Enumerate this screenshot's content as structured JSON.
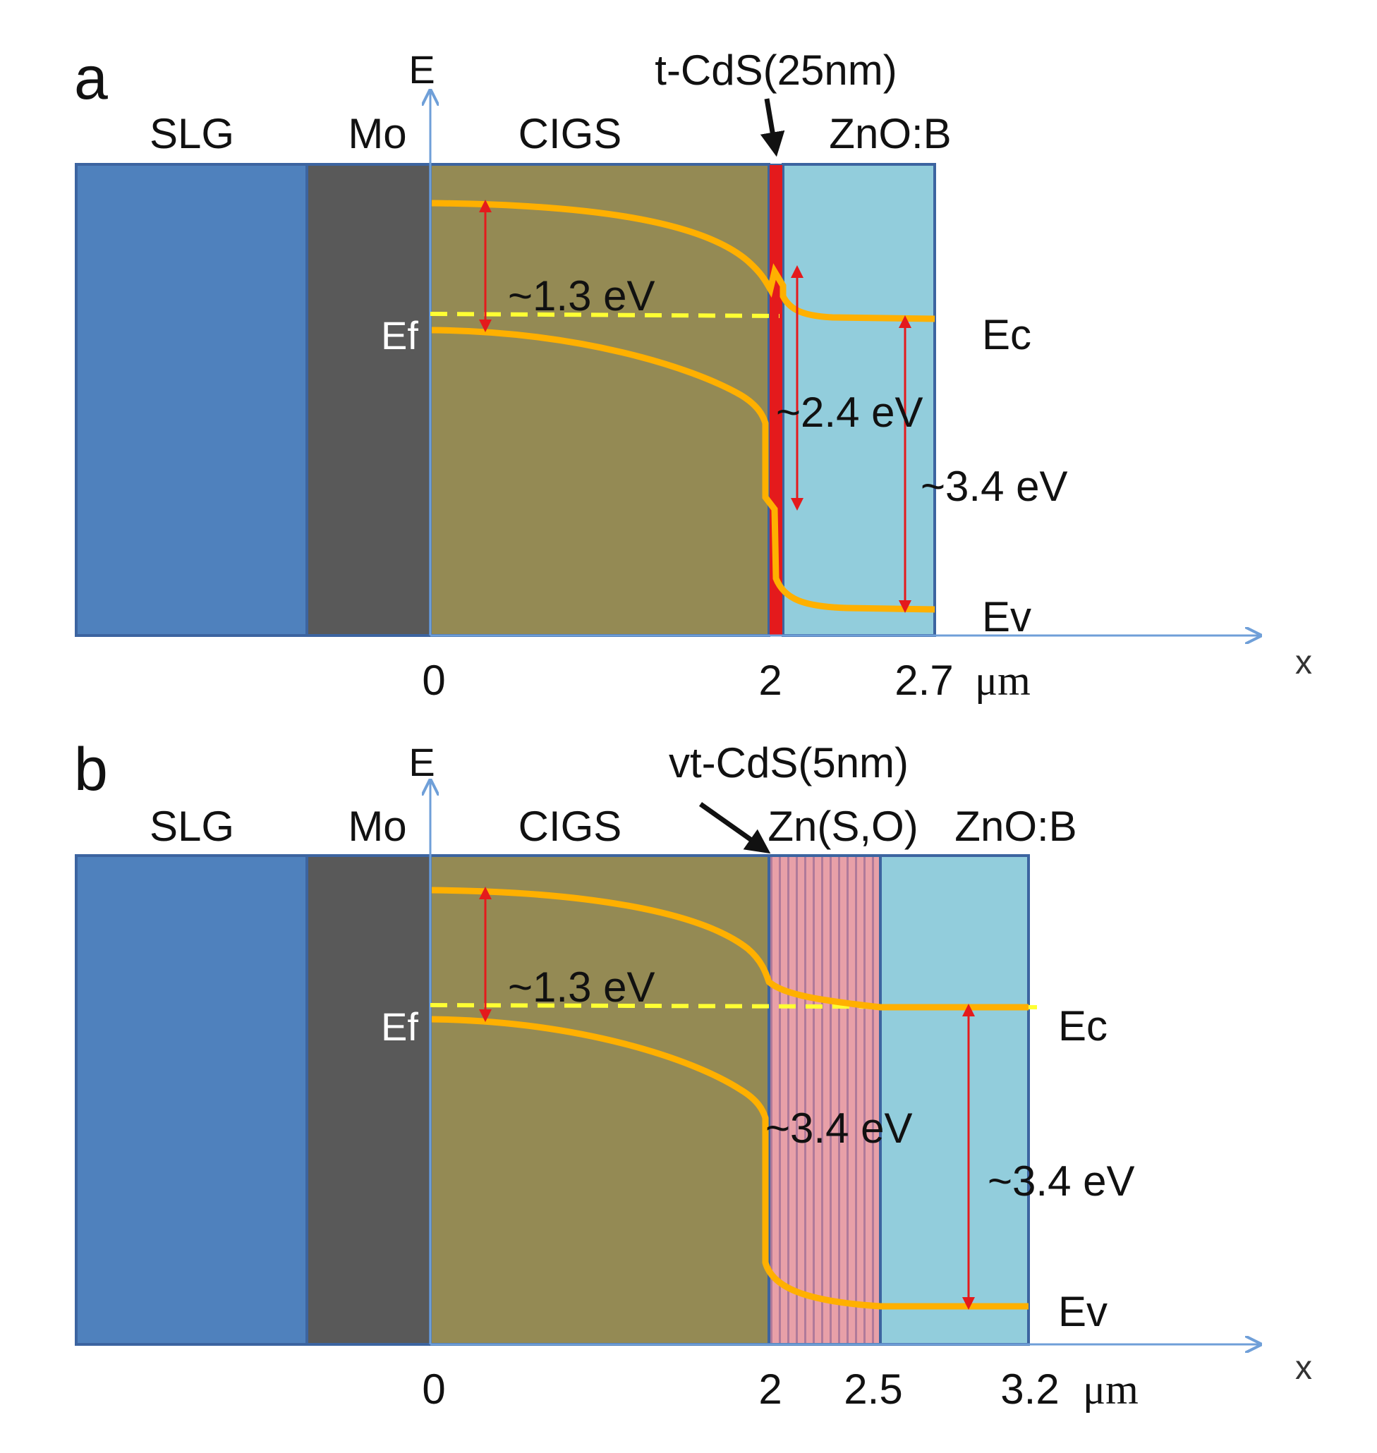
{
  "panel_a": {
    "letter": "a",
    "energy_axis": "E",
    "position_axis": "x",
    "layers": {
      "slg": "SLG",
      "mo": "Mo",
      "cigs": "CIGS",
      "window": "ZnO:B"
    },
    "callout": "t-CdS(25nm)",
    "ef": "Ef",
    "ec": "Ec",
    "ev": "Ev",
    "gap_cigs": "~1.3 eV",
    "gap_buffer": "~2.4 eV",
    "gap_window": "~3.4 eV",
    "ticks": [
      "0",
      "2",
      "2.7"
    ],
    "unit": "μm",
    "colors": {
      "slg": "#4f81bd",
      "mo": "#595959",
      "cigs": "#948a54",
      "window": "#92cddc",
      "cds": "#e41a1c",
      "band": "#ffb000",
      "fermi": "#ffff33",
      "arrow": "#e41a1c",
      "border": "#3c64a0",
      "axis": "#6f9fd8"
    }
  },
  "panel_b": {
    "letter": "b",
    "energy_axis": "E",
    "position_axis": "x",
    "layers": {
      "slg": "SLG",
      "mo": "Mo",
      "cigs": "CIGS",
      "buffer": "Zn(S,O)",
      "window": "ZnO:B"
    },
    "callout": "vt-CdS(5nm)",
    "ef": "Ef",
    "ec": "Ec",
    "ev": "Ev",
    "gap_cigs": "~1.3 eV",
    "gap_buffer": "~3.4 eV",
    "gap_window": "~3.4 eV",
    "ticks": [
      "0",
      "2",
      "2.5",
      "3.2"
    ],
    "unit": "μm",
    "colors": {
      "buffer_stripe_a": "#e8a0a8",
      "buffer_stripe_b": "#b07a9a"
    }
  }
}
